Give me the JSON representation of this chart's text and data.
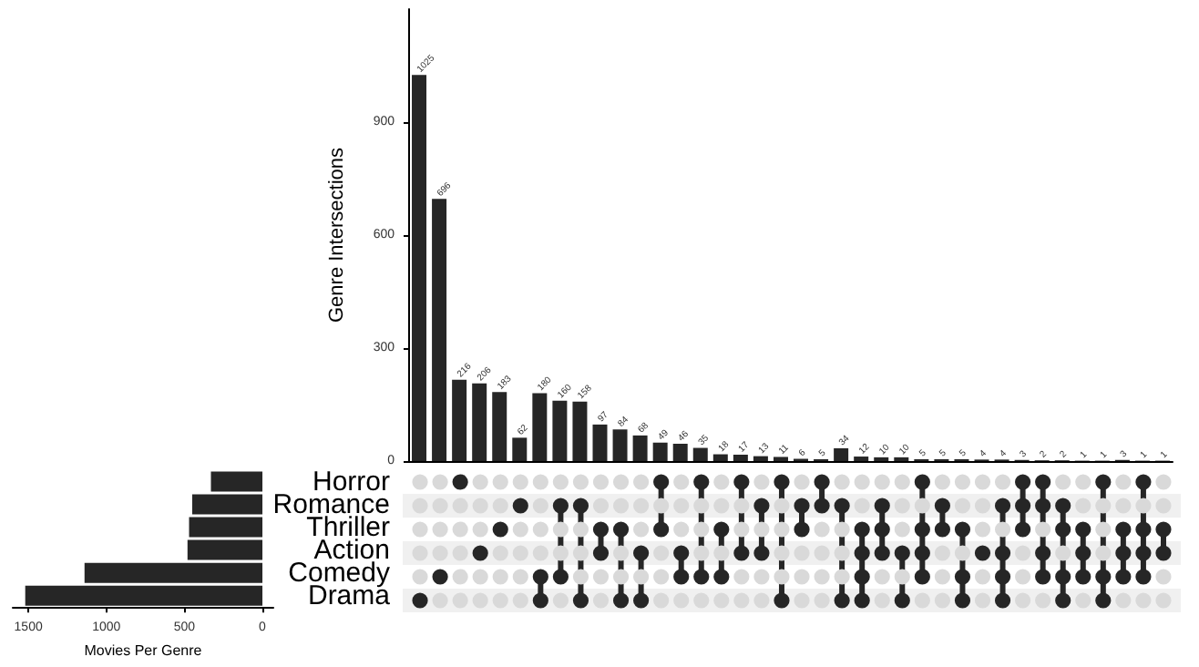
{
  "chart_data": [
    {
      "type": "bar",
      "ylabel": "Genre Intersections",
      "categories": [
        null,
        null,
        null,
        null,
        null,
        null,
        null,
        null,
        null,
        null,
        null,
        null,
        null,
        null,
        null,
        null,
        null,
        null,
        null,
        null,
        null,
        null,
        null,
        null,
        null,
        null,
        null,
        null,
        null,
        null,
        null,
        null,
        null,
        null,
        null,
        null,
        null,
        null
      ],
      "values": [
        1025,
        696,
        216,
        206,
        183,
        62,
        180,
        160,
        158,
        97,
        84,
        68,
        49,
        46,
        35,
        18,
        17,
        13,
        11,
        6,
        5,
        34,
        12,
        10,
        10,
        5,
        5,
        5,
        4,
        4,
        3,
        2,
        2,
        1,
        1,
        3,
        1,
        1
      ],
      "color": "#262626",
      "ylim": [
        0,
        1200
      ],
      "yticks": [
        0,
        300,
        600,
        900
      ],
      "data_labels": true,
      "tick_labels": "y"
    },
    {
      "type": "bar",
      "orientation": "horizontal",
      "xlabel": "Movies Per Genre",
      "categories": [
        "Horror",
        "Romance",
        "Thriller",
        "Action",
        "Comedy",
        "Drama"
      ],
      "values": [
        330,
        450,
        470,
        480,
        1140,
        1520
      ],
      "color": "#262626",
      "xlim": [
        1600,
        -70
      ],
      "xticks": [
        1500,
        1000,
        500,
        0
      ]
    }
  ]
}
